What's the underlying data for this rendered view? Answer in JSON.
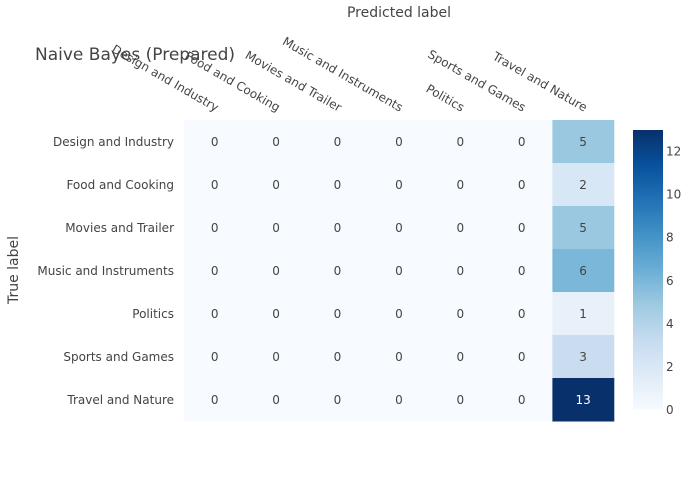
{
  "chart_data": {
    "type": "heatmap",
    "title": "Naive Bayes (Prepared)",
    "xlabel": "Predicted label",
    "ylabel": "True label",
    "x_categories": [
      "Design and Industry",
      "Food and Cooking",
      "Movies and Trailer",
      "Music and Instruments",
      "Politics",
      "Sports and Games",
      "Travel and Nature"
    ],
    "y_categories": [
      "Design and Industry",
      "Food and Cooking",
      "Movies and Trailer",
      "Music and Instruments",
      "Politics",
      "Sports and Games",
      "Travel and Nature"
    ],
    "z": [
      [
        0,
        0,
        0,
        0,
        0,
        0,
        5
      ],
      [
        0,
        0,
        0,
        0,
        0,
        0,
        2
      ],
      [
        0,
        0,
        0,
        0,
        0,
        0,
        5
      ],
      [
        0,
        0,
        0,
        0,
        0,
        0,
        6
      ],
      [
        0,
        0,
        0,
        0,
        0,
        0,
        1
      ],
      [
        0,
        0,
        0,
        0,
        0,
        0,
        3
      ],
      [
        0,
        0,
        0,
        0,
        0,
        0,
        13
      ]
    ],
    "colorscale": "Blues",
    "zmin": 0,
    "zmax": 13,
    "colorbar_ticks": [
      0,
      2,
      4,
      6,
      8,
      10,
      12
    ],
    "x_axis_position": "top"
  }
}
